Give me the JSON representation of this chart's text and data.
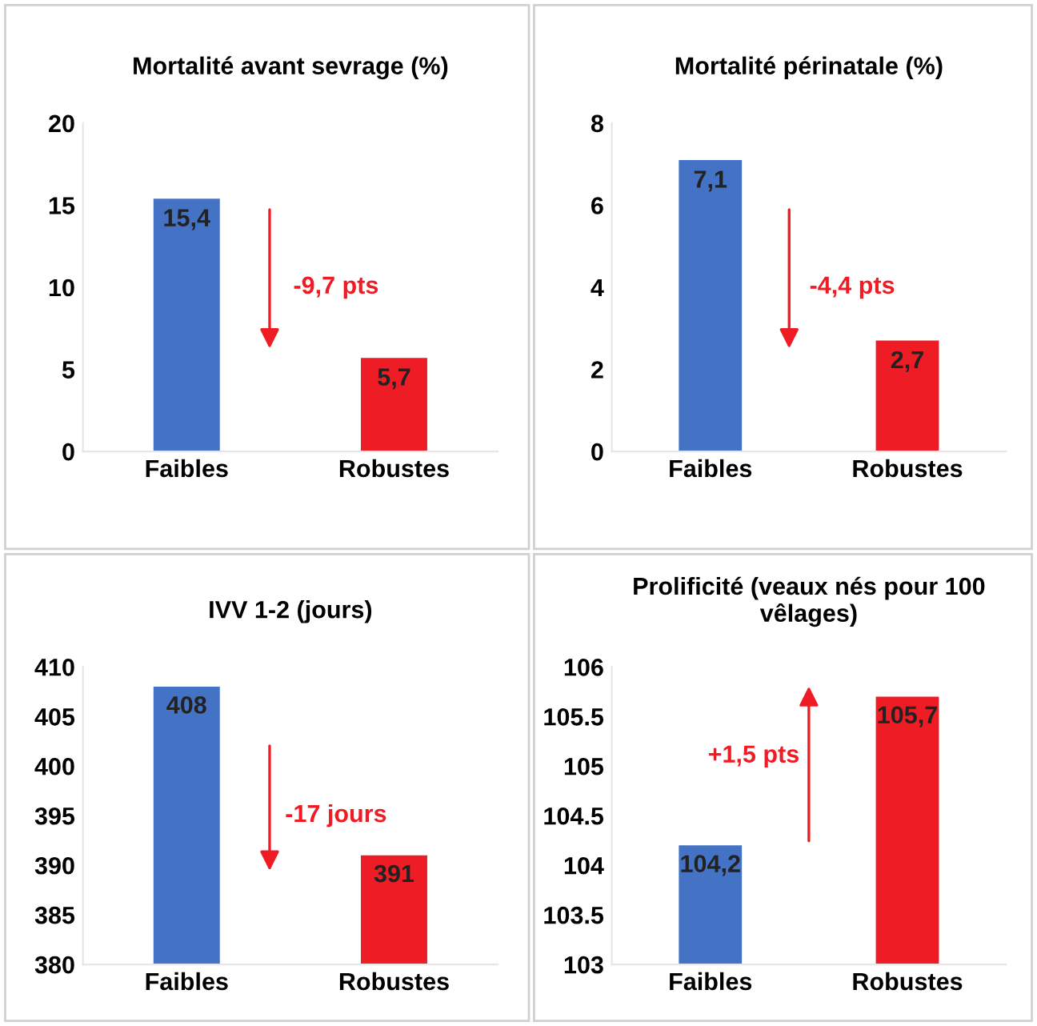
{
  "chart_data": [
    {
      "type": "bar",
      "title": "Mortalité avant sevrage (%)",
      "categories": [
        "Faibles",
        "Robustes"
      ],
      "values": [
        15.4,
        5.7
      ],
      "colors": [
        "#4472c4",
        "#ee1c24"
      ],
      "value_labels": [
        "15,4",
        "5,7"
      ],
      "ylim": [
        0,
        20
      ],
      "yticks": [
        0,
        5,
        10,
        15,
        20
      ],
      "annotations": [
        "-9,7 pts"
      ]
    },
    {
      "type": "bar",
      "title": "Mortalité périnatale (%)",
      "categories": [
        "Faibles",
        "Robustes"
      ],
      "values": [
        7.1,
        2.7
      ],
      "colors": [
        "#4472c4",
        "#ee1c24"
      ],
      "value_labels": [
        "7,1",
        "2,7"
      ],
      "ylim": [
        0,
        8
      ],
      "yticks": [
        0,
        2,
        4,
        6,
        8
      ],
      "annotations": [
        "-4,4 pts"
      ]
    },
    {
      "type": "bar",
      "title": "IVV 1-2 (jours)",
      "categories": [
        "Faibles",
        "Robustes"
      ],
      "values": [
        408,
        391
      ],
      "colors": [
        "#4472c4",
        "#ee1c24"
      ],
      "value_labels": [
        "408",
        "391"
      ],
      "ylim": [
        380,
        410
      ],
      "yticks": [
        380,
        385,
        390,
        395,
        400,
        405,
        410
      ],
      "annotations": [
        "-17 jours"
      ]
    },
    {
      "type": "bar",
      "title": "Prolificité (veaux nés pour 100 vêlages)",
      "categories": [
        "Faibles",
        "Robustes"
      ],
      "values": [
        104.2,
        105.7
      ],
      "colors": [
        "#4472c4",
        "#ee1c24"
      ],
      "value_labels": [
        "104,2",
        "105,7"
      ],
      "ylim": [
        103,
        106
      ],
      "yticks": [
        103,
        103.5,
        104,
        104.5,
        105,
        105.5,
        106
      ],
      "annotations": [
        "+1,5 pts"
      ]
    }
  ]
}
